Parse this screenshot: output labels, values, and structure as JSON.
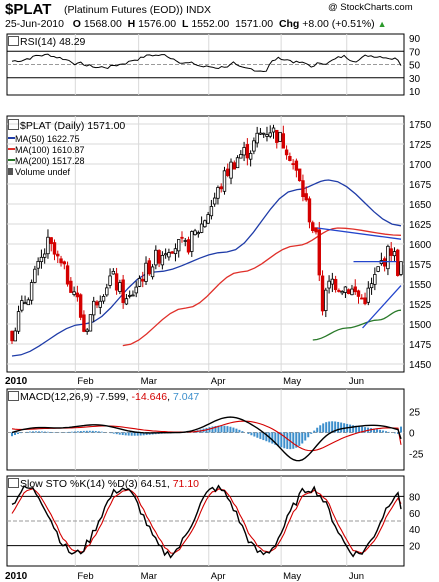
{
  "header": {
    "symbol": "$PLAT",
    "subtitle": "(Platinum Futures (EOD)) INDX",
    "copyright": "@ StockCharts.com",
    "date": "25-Jun-2010",
    "open_label": "O",
    "open": "1568.00",
    "high_label": "H",
    "high": "1576.00",
    "low_label": "L",
    "low": "1552.00",
    "close": "1571.00",
    "chg_label": "Chg",
    "chg": "+8.00 (+0.51%)",
    "chg_icon": "up-triangle-icon"
  },
  "colors": {
    "price_up": "#000000",
    "price_down": "#d40000",
    "ma50": "#1f3ca8",
    "ma100": "#e0302a",
    "ma200": "#2a7a2a",
    "trendline": "#2244cc",
    "macd_hist": "#3d8fcc",
    "grid": "#d9d9d9",
    "dash": "#9a9a9a"
  },
  "rsi_panel": {
    "label": "RSI(14) 48.29",
    "value": 48.29,
    "ticks": [
      "90",
      "70",
      "50",
      "30",
      "10"
    ]
  },
  "price_panel": {
    "label": "$PLAT (Daily) 1571.00",
    "legend": [
      {
        "label": "MA(50) 1622.75",
        "color": "#1f3ca8"
      },
      {
        "label": "MA(100) 1610.87",
        "color": "#e0302a"
      },
      {
        "label": "MA(200) 1517.28",
        "color": "#2a7a2a"
      },
      {
        "label": "Volume undef",
        "color": "#555555"
      }
    ],
    "ticks": [
      "1750",
      "1725",
      "1700",
      "1675",
      "1650",
      "1625",
      "1600",
      "1575",
      "1550",
      "1525",
      "1500",
      "1475",
      "1450"
    ]
  },
  "macd_panel": {
    "label_prefix": "MACD(12,26,9)",
    "macd": "-7.599",
    "signal": "-14.646",
    "hist": "7.047",
    "ticks": [
      "25",
      "0",
      "-25"
    ]
  },
  "sto_panel": {
    "label_prefix": "Slow STO %K(14) %D(3)",
    "k": "64.51",
    "d": "71.10",
    "ticks": [
      "80",
      "60",
      "40",
      "20"
    ]
  },
  "x_axis": {
    "year": "2010",
    "months": [
      "Feb",
      "Mar",
      "Apr",
      "May",
      "Jun"
    ]
  },
  "chart_data": {
    "type": "candlestick",
    "title": "$PLAT (Platinum Futures (EOD)) INDX",
    "period": "Daily, Jan 2010 - 25 Jun 2010",
    "ylim": [
      1440,
      1760
    ],
    "price_series_approx": {
      "dates": [
        "2010-01-04",
        "2010-01-20",
        "2010-02-01",
        "2010-02-05",
        "2010-02-10",
        "2010-02-17",
        "2010-02-24",
        "2010-03-01",
        "2010-03-08",
        "2010-03-15",
        "2010-03-22",
        "2010-03-29",
        "2010-04-05",
        "2010-04-09",
        "2010-04-14",
        "2010-04-20",
        "2010-04-23",
        "2010-04-28",
        "2010-05-03",
        "2010-05-06",
        "2010-05-13",
        "2010-05-19",
        "2010-05-21",
        "2010-05-25",
        "2010-05-28",
        "2010-06-02",
        "2010-06-08",
        "2010-06-11",
        "2010-06-16",
        "2010-06-21",
        "2010-06-24",
        "2010-06-25"
      ],
      "close": [
        1490,
        1600,
        1540,
        1490,
        1530,
        1560,
        1525,
        1555,
        1580,
        1600,
        1595,
        1625,
        1665,
        1690,
        1710,
        1720,
        1735,
        1745,
        1730,
        1720,
        1660,
        1600,
        1520,
        1555,
        1550,
        1545,
        1530,
        1540,
        1575,
        1595,
        1565,
        1571
      ]
    },
    "moving_averages": {
      "MA50": {
        "last": 1622.75,
        "dates": [
          "2010-01-04",
          "2010-02-05",
          "2010-03-08",
          "2010-04-09",
          "2010-05-10",
          "2010-05-24",
          "2010-06-25"
        ],
        "values": [
          1460,
          1500,
          1565,
          1590,
          1668,
          1680,
          1622.75
        ]
      },
      "MA100": {
        "last": 1610.87,
        "dates": [
          "2010-02-22",
          "2010-03-22",
          "2010-04-15",
          "2010-05-10",
          "2010-05-28",
          "2010-06-25"
        ],
        "values": [
          1473,
          1520,
          1565,
          1598,
          1620,
          1610.87
        ]
      },
      "MA200": {
        "last": 1517.28,
        "dates": [
          "2010-05-17",
          "2010-06-01",
          "2010-06-15",
          "2010-06-25"
        ],
        "values": [
          1480,
          1495,
          1505,
          1517.28
        ]
      }
    },
    "rsi": {
      "period": 14,
      "last": 48.29
    },
    "macd": {
      "params": "12,26,9",
      "macd": -7.599,
      "signal": -14.646,
      "histogram": 7.047
    },
    "stochastic": {
      "params": "%K(14) %D(3)",
      "k": 64.51,
      "d": 71.1
    }
  }
}
